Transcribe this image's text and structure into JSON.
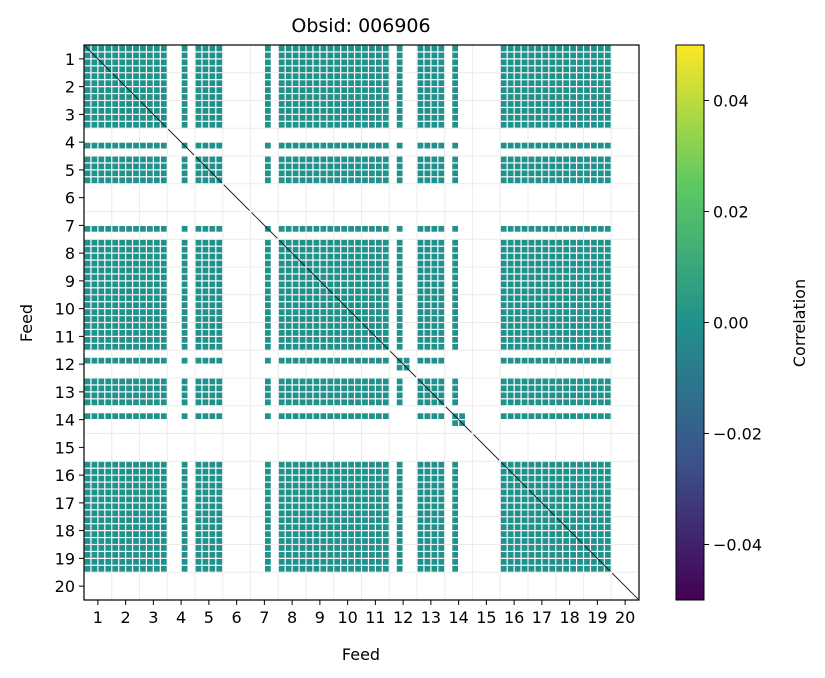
{
  "chart_data": {
    "type": "heatmap",
    "title": "Obsid: 006906",
    "xlabel": "Feed",
    "ylabel": "Feed",
    "x_ticks": [
      "1",
      "2",
      "3",
      "4",
      "5",
      "6",
      "7",
      "8",
      "9",
      "10",
      "11",
      "12",
      "13",
      "14",
      "15",
      "16",
      "17",
      "18",
      "19",
      "20"
    ],
    "y_ticks": [
      "1",
      "2",
      "3",
      "4",
      "5",
      "6",
      "7",
      "8",
      "9",
      "10",
      "11",
      "12",
      "13",
      "14",
      "15",
      "16",
      "17",
      "18",
      "19",
      "20"
    ],
    "colorbar": {
      "label": "Correlation",
      "range": [
        -0.05,
        0.05
      ],
      "ticks": [
        "0.04",
        "0.02",
        "0.00",
        "−0.02",
        "−0.04"
      ],
      "tick_values": [
        0.04,
        0.02,
        0.0,
        -0.02,
        -0.04
      ],
      "colormap": "viridis"
    },
    "grid": true,
    "sub_bands_per_feed": 4,
    "active_feeds": [
      1,
      2,
      3,
      4,
      5,
      7,
      8,
      9,
      10,
      11,
      13,
      16,
      17,
      18,
      19
    ],
    "partial_feeds": [
      12,
      14
    ],
    "inactive_feeds": [
      6,
      15,
      20
    ],
    "block_value": 0.0,
    "colors": {
      "block": "#21918c",
      "grid": "#ececec",
      "diagonal": "#1a1a1a",
      "cmap_stops": [
        "#440154",
        "#3b528b",
        "#21918c",
        "#5ec962",
        "#fde725"
      ]
    }
  }
}
